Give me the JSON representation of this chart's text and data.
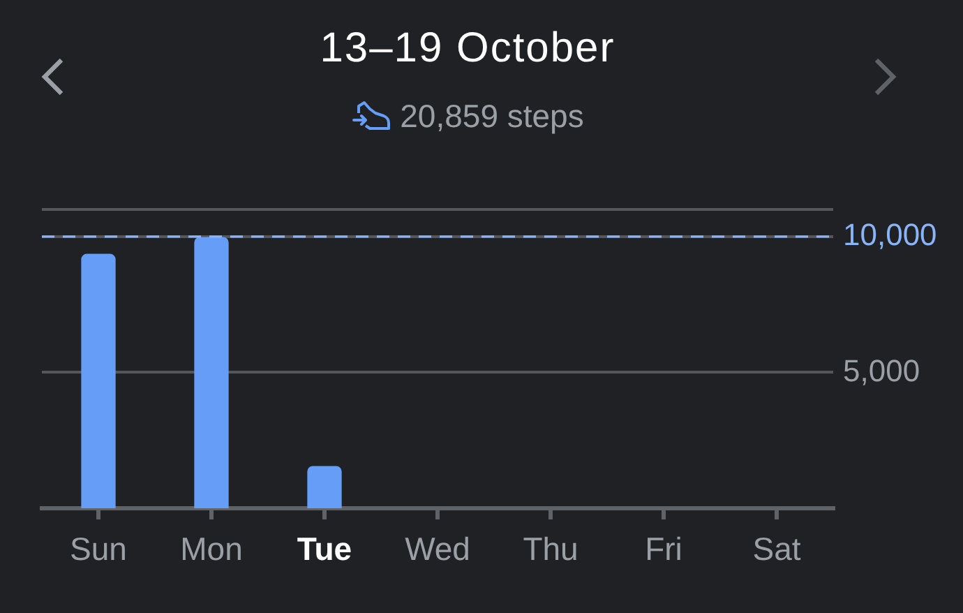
{
  "chart_data": {
    "type": "bar",
    "title": "13–19 October",
    "subtitle": "20,859 steps",
    "categories": [
      "Sun",
      "Mon",
      "Tue",
      "Wed",
      "Thu",
      "Fri",
      "Sat"
    ],
    "values": [
      9350,
      9970,
      1540,
      null,
      null,
      null,
      null
    ],
    "color": "#669df6",
    "ylim": [
      0,
      11000
    ],
    "yticks": [
      {
        "value": 5000,
        "label": "5,000"
      },
      {
        "value": 10000,
        "label": "10,000"
      },
      {
        "value": 11000,
        "label": null
      }
    ],
    "grid": "y",
    "ref_lines": [
      {
        "axis": "y",
        "value": 10000,
        "color": "#8ab4f8",
        "line_style": "dashed"
      }
    ]
  }
}
